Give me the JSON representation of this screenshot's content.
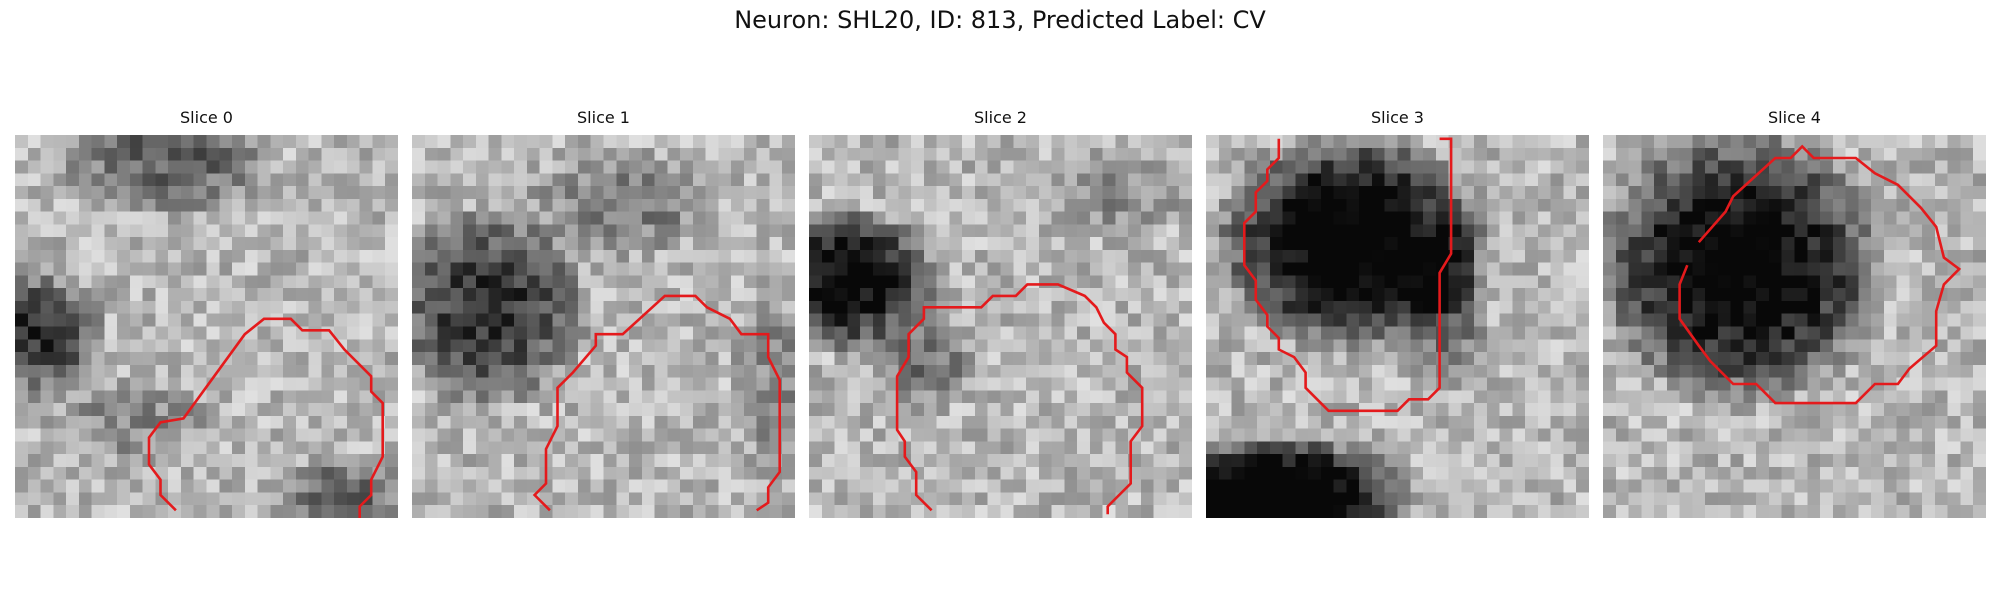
{
  "figure": {
    "title": "Neuron: SHL20, ID: 813, Predicted Label: CV"
  },
  "contour_color": "#e41a1c",
  "slices": [
    {
      "title": "Slice 0"
    },
    {
      "title": "Slice 1"
    },
    {
      "title": "Slice 2"
    },
    {
      "title": "Slice 3"
    },
    {
      "title": "Slice 4"
    }
  ]
}
